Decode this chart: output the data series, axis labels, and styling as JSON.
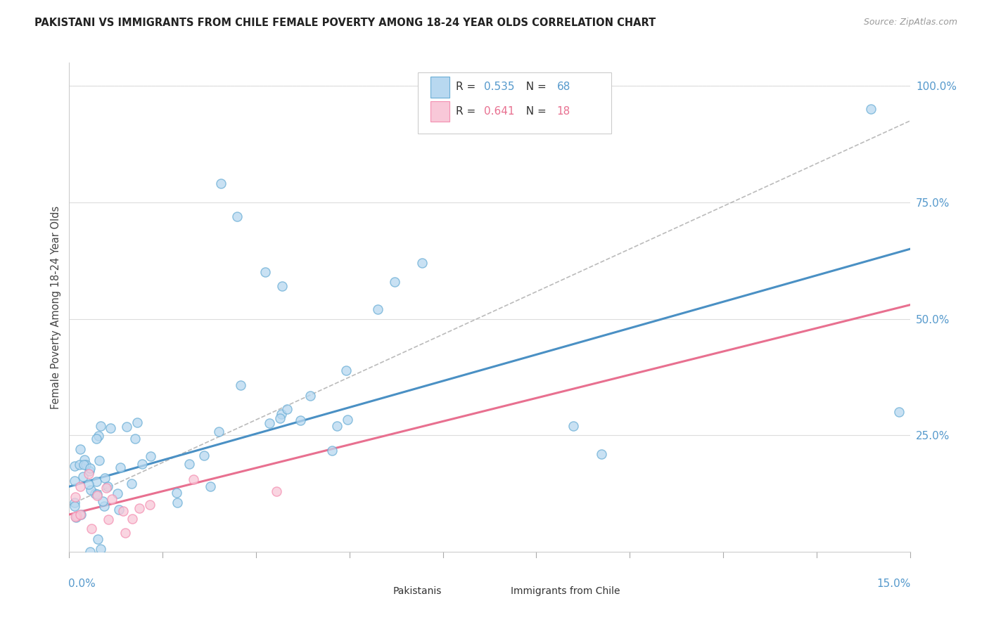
{
  "title": "PAKISTANI VS IMMIGRANTS FROM CHILE FEMALE POVERTY AMONG 18-24 YEAR OLDS CORRELATION CHART",
  "source": "Source: ZipAtlas.com",
  "ylabel": "Female Poverty Among 18-24 Year Olds",
  "ytick_labels": [
    "25.0%",
    "50.0%",
    "75.0%",
    "100.0%"
  ],
  "ytick_values": [
    0.25,
    0.5,
    0.75,
    1.0
  ],
  "legend_bottom": [
    {
      "label": "Pakistanis",
      "fill": "#b8d8f0",
      "edge": "#6aaed6"
    },
    {
      "label": "Immigrants from Chile",
      "fill": "#f8c8d8",
      "edge": "#f48fb1"
    }
  ],
  "r_blue": "0.535",
  "n_blue": "68",
  "r_pink": "0.641",
  "n_pink": "18",
  "blue_line_color": "#4a90c4",
  "pink_line_color": "#e87090",
  "blue_fill": "#b8d8f0",
  "blue_edge": "#6aaed6",
  "pink_fill": "#f8c8d8",
  "pink_edge": "#f48fb1",
  "axis_label_color": "#5599cc",
  "text_color": "#222222",
  "source_color": "#999999",
  "grid_color": "#dddddd",
  "xlim": [
    0.0,
    0.15
  ],
  "ylim": [
    0.0,
    1.05
  ],
  "blue_trend": {
    "slope": 3.4,
    "intercept": 0.14
  },
  "pink_trend": {
    "slope": 3.0,
    "intercept": 0.08
  },
  "dash_line": {
    "slope": 5.5,
    "intercept": 0.1
  },
  "background_color": "#ffffff"
}
